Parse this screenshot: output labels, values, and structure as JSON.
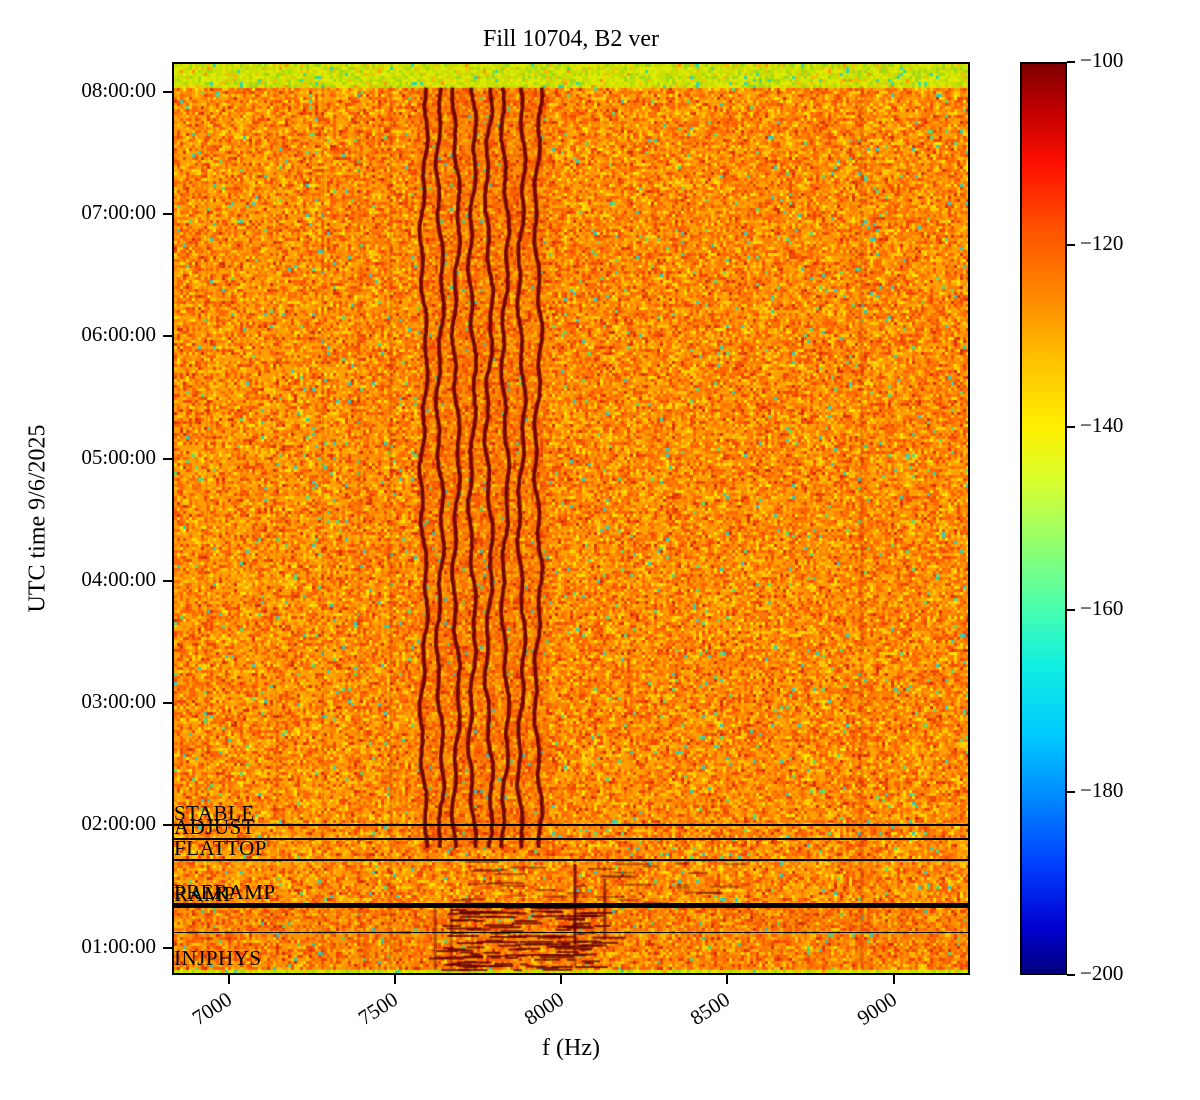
{
  "figure": {
    "title": "Fill 10704, B2 ver",
    "xlabel": "f (Hz)",
    "ylabel": "UTC time 9/6/2025"
  },
  "chart_data": {
    "type": "heatmap",
    "subtype": "spectrogram",
    "title": "Fill 10704, B2 ver",
    "xlabel": "f (Hz)",
    "ylabel": "UTC time 9/6/2025",
    "grid": false,
    "freq_range_hz": [
      6830,
      9230
    ],
    "x_ticks": [
      {
        "value": 7000,
        "label": "7000"
      },
      {
        "value": 7500,
        "label": "7500"
      },
      {
        "value": 8000,
        "label": "8000"
      },
      {
        "value": 8500,
        "label": "8500"
      },
      {
        "value": 9000,
        "label": "9000"
      }
    ],
    "time_range_hours": [
      0.775,
      8.245
    ],
    "y_ticks": [
      {
        "hour": 8,
        "label": "08:00:00"
      },
      {
        "hour": 7,
        "label": "07:00:00"
      },
      {
        "hour": 6,
        "label": "06:00:00"
      },
      {
        "hour": 5,
        "label": "05:00:00"
      },
      {
        "hour": 4,
        "label": "04:00:00"
      },
      {
        "hour": 3,
        "label": "03:00:00"
      },
      {
        "hour": 2,
        "label": "02:00:00"
      },
      {
        "hour": 1,
        "label": "01:00:00"
      }
    ],
    "colorbar": {
      "colormap": "jet",
      "range_db": [
        -200,
        -100
      ],
      "ticks": [
        {
          "value": -100,
          "label": "−100"
        },
        {
          "value": -120,
          "label": "−120"
        },
        {
          "value": -140,
          "label": "−140"
        },
        {
          "value": -160,
          "label": "−160"
        },
        {
          "value": -180,
          "label": "−180"
        },
        {
          "value": -200,
          "label": "−200"
        }
      ]
    },
    "beam_modes": [
      {
        "label": "STABLE",
        "hour": 2.002,
        "line_width": 2
      },
      {
        "label": "ADJUST",
        "hour": 1.89,
        "line_width": 2
      },
      {
        "label": "FLATTOP",
        "hour": 1.712,
        "line_width": 2
      },
      {
        "label": "PRERAMP",
        "hour": 1.352,
        "line_width": 3
      },
      {
        "label": "RAMP",
        "hour": 1.338,
        "line_width": 3
      },
      {
        "label": "",
        "hour": 1.12,
        "line_width": 1
      },
      {
        "label": "INJPHYS",
        "hour": 0.82,
        "line_width": 0
      }
    ],
    "features": {
      "noise_floor_db": -120,
      "top_band": {
        "t_from": 8.06,
        "t_to": 8.245,
        "appearance": "yellow-green noise after dump"
      },
      "bottom_band": {
        "t_from": 0.775,
        "t_to": 0.808,
        "appearance": "yellow-green noise"
      },
      "stripe_cluster": {
        "comment": "dark wavy spectral lines, ~-100 dB",
        "frequencies_hz": [
          7585,
          7634,
          7683,
          7732,
          7782,
          7831,
          7880,
          7930
        ],
        "t_from": 1.78,
        "t_to": 8.05
      },
      "cluster_tint": {
        "f_from": 7570,
        "f_to": 7965,
        "t_from": 1.78,
        "t_to": 8.05
      },
      "faint_vertical_lines": [
        {
          "f": 6930,
          "alpha": 0.22,
          "w": 2
        },
        {
          "f": 7140,
          "alpha": 0.2,
          "w": 2
        },
        {
          "f": 7280,
          "alpha": 0.26,
          "w": 2
        },
        {
          "f": 7390,
          "alpha": 0.24,
          "w": 3
        },
        {
          "f": 7485,
          "alpha": 0.3,
          "w": 3
        },
        {
          "f": 8210,
          "alpha": 0.14,
          "w": 2
        },
        {
          "f": 8908,
          "alpha": 0.3,
          "w": 4
        }
      ],
      "strong_vertical_segments": [
        {
          "f": 8042,
          "t_from": 1.01,
          "t_to": 1.67,
          "alpha": 0.85,
          "w": 3
        },
        {
          "f": 8042,
          "t_from": 0.83,
          "t_to": 1.01,
          "alpha": 0.4,
          "w": 3
        },
        {
          "f": 8132,
          "t_from": 1.05,
          "t_to": 1.55,
          "alpha": 0.65,
          "w": 3
        },
        {
          "f": 7620,
          "t_from": 0.8,
          "t_to": 1.35,
          "alpha": 0.45,
          "w": 3
        },
        {
          "f": 7668,
          "t_from": 0.8,
          "t_to": 1.35,
          "alpha": 0.4,
          "w": 3
        }
      ],
      "injection_noise": {
        "f_from": 7600,
        "f_to": 8100,
        "t_from": 0.8,
        "t_to": 1.35,
        "dash_count": 130
      },
      "preramp_noise": {
        "f_from": 7650,
        "f_to": 8500,
        "t_from": 1.35,
        "t_to": 1.73,
        "dash_count": 35
      },
      "row_tints": [
        {
          "t_from": 1.12,
          "t_to": 1.345,
          "alpha": 0.12
        },
        {
          "t_from": 0.81,
          "t_to": 1.12,
          "alpha": 0.08
        }
      ]
    }
  }
}
